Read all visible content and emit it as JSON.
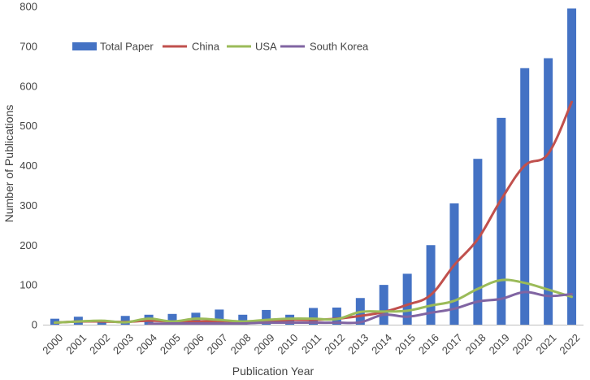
{
  "chart_data": {
    "type": "bar",
    "title": "",
    "xlabel": "Publication Year",
    "ylabel": "Number of Publications",
    "ylim": [
      0,
      800
    ],
    "yticks": [
      0,
      100,
      200,
      300,
      400,
      500,
      600,
      700,
      800
    ],
    "grid": false,
    "legend_position": "top-left",
    "categories": [
      "2000",
      "2001",
      "2002",
      "2003",
      "2004",
      "2005",
      "2006",
      "2007",
      "2008",
      "2009",
      "2010",
      "2011",
      "2012",
      "2013",
      "2014",
      "2015",
      "2016",
      "2017",
      "2018",
      "2019",
      "2020",
      "2021",
      "2022"
    ],
    "series": [
      {
        "name": "Total Paper",
        "type": "bar",
        "color": "#4472C4",
        "values": [
          15,
          20,
          12,
          22,
          25,
          27,
          30,
          38,
          25,
          37,
          25,
          42,
          43,
          67,
          100,
          128,
          200,
          305,
          417,
          520,
          645,
          670,
          795
        ]
      },
      {
        "name": "China",
        "type": "line",
        "color": "#C0504D",
        "values": [
          5,
          8,
          8,
          7,
          10,
          8,
          8,
          9,
          7,
          8,
          12,
          12,
          15,
          22,
          32,
          50,
          75,
          150,
          215,
          315,
          400,
          430,
          560
        ]
      },
      {
        "name": "USA",
        "type": "line",
        "color": "#9BBB59",
        "values": [
          5,
          8,
          10,
          6,
          15,
          8,
          15,
          12,
          8,
          12,
          15,
          15,
          14,
          32,
          33,
          35,
          48,
          60,
          90,
          112,
          105,
          88,
          70
        ]
      },
      {
        "name": "South Korea",
        "type": "line",
        "color": "#8064A2",
        "values": [
          null,
          null,
          null,
          null,
          2,
          3,
          3,
          3,
          3,
          5,
          5,
          5,
          5,
          6,
          25,
          20,
          30,
          40,
          58,
          65,
          82,
          72,
          77
        ]
      }
    ]
  }
}
